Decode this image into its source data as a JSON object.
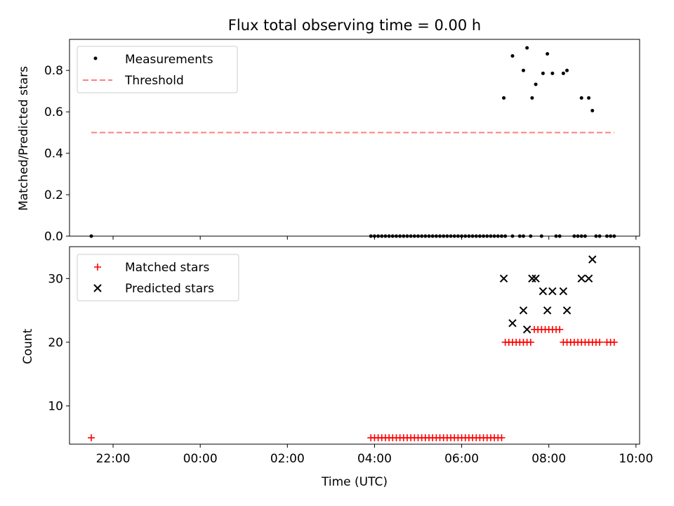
{
  "chart_data": [
    {
      "type": "scatter",
      "title": "Flux total observing time = 0.00 h",
      "ylabel": "Matched/Predicted stars",
      "xlabel": "",
      "ylim": [
        0,
        0.95
      ],
      "yticks": [
        0.0,
        0.2,
        0.4,
        0.6,
        0.8
      ],
      "ytick_labels": [
        "0.0",
        "0.2",
        "0.4",
        "0.6",
        "0.8"
      ],
      "legend": {
        "position": "top-left",
        "entries": [
          "Measurements",
          "Threshold"
        ]
      },
      "grid": false,
      "series": [
        {
          "name": "Measurements",
          "marker": "dot",
          "color": "#000000",
          "x": [
            "21:30",
            "03:55",
            "04:00",
            "04:05",
            "04:10",
            "04:15",
            "04:20",
            "04:25",
            "04:30",
            "04:35",
            "04:40",
            "04:45",
            "04:50",
            "04:55",
            "05:00",
            "05:05",
            "05:10",
            "05:15",
            "05:20",
            "05:25",
            "05:30",
            "05:35",
            "05:40",
            "05:45",
            "05:50",
            "05:55",
            "06:00",
            "06:05",
            "06:10",
            "06:15",
            "06:20",
            "06:25",
            "06:30",
            "06:35",
            "06:40",
            "06:45",
            "06:50",
            "06:55",
            "07:00",
            "07:10",
            "07:20",
            "07:25",
            "07:35",
            "07:50",
            "08:10",
            "08:15",
            "08:35",
            "08:40",
            "08:45",
            "08:50",
            "09:05",
            "09:10",
            "09:20",
            "09:25",
            "09:30",
            "06:58",
            "07:10",
            "07:25",
            "07:30",
            "07:37",
            "07:42",
            "07:52",
            "07:58",
            "08:05",
            "08:20",
            "08:25",
            "08:45",
            "08:55",
            "09:00"
          ],
          "y": [
            0,
            0,
            0,
            0,
            0,
            0,
            0,
            0,
            0,
            0,
            0,
            0,
            0,
            0,
            0,
            0,
            0,
            0,
            0,
            0,
            0,
            0,
            0,
            0,
            0,
            0,
            0,
            0,
            0,
            0,
            0,
            0,
            0,
            0,
            0,
            0,
            0,
            0,
            0,
            0,
            0,
            0,
            0,
            0,
            0,
            0,
            0,
            0,
            0,
            0,
            0,
            0,
            0,
            0,
            0,
            0.667,
            0.87,
            0.8,
            0.909,
            0.667,
            0.733,
            0.786,
            0.88,
            0.786,
            0.786,
            0.8,
            0.667,
            0.667,
            0.606
          ]
        },
        {
          "name": "Threshold",
          "style": "dashed",
          "color": "#ff7f7f",
          "x": [
            "21:30",
            "09:30"
          ],
          "y": [
            0.5,
            0.5
          ]
        }
      ]
    },
    {
      "type": "scatter",
      "title": "",
      "ylabel": "Count",
      "xlabel": "Time (UTC)",
      "xlim": [
        "21:00",
        "10:05"
      ],
      "xticks": [
        "22:00",
        "00:00",
        "02:00",
        "04:00",
        "06:00",
        "08:00",
        "10:00"
      ],
      "ylim": [
        4,
        35
      ],
      "yticks": [
        10,
        20,
        30
      ],
      "ytick_labels": [
        "10",
        "20",
        "30"
      ],
      "legend": {
        "position": "top-left",
        "entries": [
          "Matched stars",
          "Predicted stars"
        ]
      },
      "grid": false,
      "series": [
        {
          "name": "Matched stars",
          "marker": "plus",
          "color": "#ff0000",
          "x": [
            "21:30",
            "03:55",
            "04:00",
            "04:05",
            "04:10",
            "04:15",
            "04:20",
            "04:25",
            "04:30",
            "04:35",
            "04:40",
            "04:45",
            "04:50",
            "04:55",
            "05:00",
            "05:05",
            "05:10",
            "05:15",
            "05:20",
            "05:25",
            "05:30",
            "05:35",
            "05:40",
            "05:45",
            "05:50",
            "05:55",
            "06:00",
            "06:05",
            "06:10",
            "06:15",
            "06:20",
            "06:25",
            "06:30",
            "06:35",
            "06:40",
            "06:45",
            "06:50",
            "06:55",
            "07:00",
            "07:05",
            "07:10",
            "07:15",
            "07:20",
            "07:25",
            "07:30",
            "07:35",
            "07:40",
            "07:45",
            "07:50",
            "07:55",
            "08:00",
            "08:05",
            "08:10",
            "08:15",
            "08:20",
            "08:25",
            "08:30",
            "08:35",
            "08:40",
            "08:45",
            "08:50",
            "08:55",
            "09:00",
            "09:05",
            "09:10",
            "09:20",
            "09:25",
            "09:30"
          ],
          "y": [
            5,
            5,
            5,
            5,
            5,
            5,
            5,
            5,
            5,
            5,
            5,
            5,
            5,
            5,
            5,
            5,
            5,
            5,
            5,
            5,
            5,
            5,
            5,
            5,
            5,
            5,
            5,
            5,
            5,
            5,
            5,
            5,
            5,
            5,
            5,
            5,
            5,
            5,
            20,
            20,
            20,
            20,
            20,
            20,
            20,
            20,
            22,
            22,
            22,
            22,
            22,
            22,
            22,
            22,
            20,
            20,
            20,
            20,
            20,
            20,
            20,
            20,
            20,
            20,
            20,
            20,
            20,
            20
          ]
        },
        {
          "name": "Predicted stars",
          "marker": "x",
          "color": "#000000",
          "x": [
            "06:58",
            "07:10",
            "07:25",
            "07:30",
            "07:37",
            "07:42",
            "07:52",
            "07:58",
            "08:05",
            "08:20",
            "08:25",
            "08:45",
            "08:55",
            "09:00"
          ],
          "y": [
            30,
            23,
            25,
            22,
            30,
            30,
            28,
            25,
            28,
            28,
            25,
            30,
            30,
            33
          ]
        }
      ]
    }
  ]
}
